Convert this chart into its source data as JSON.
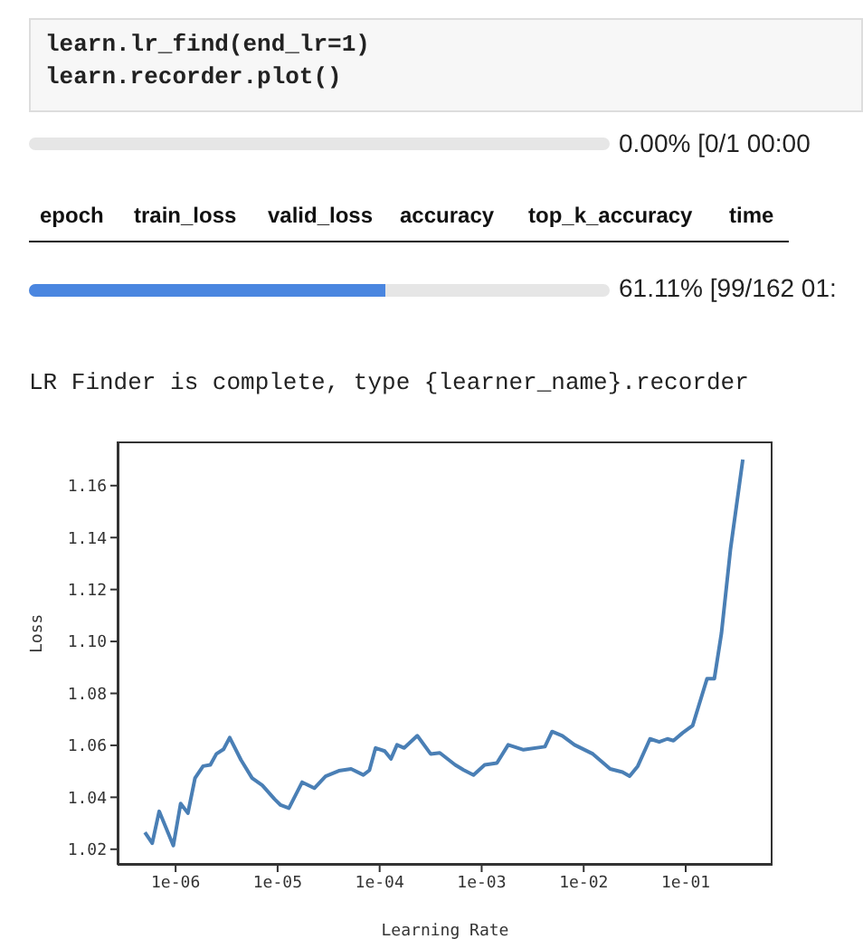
{
  "chart_data": {
    "type": "line",
    "xlabel": "Learning Rate",
    "ylabel": "Loss",
    "x": [
      5e-07,
      5.9e-07,
      6.9e-07,
      9.5e-07,
      1.12e-06,
      1.32e-06,
      1.55e-06,
      1.86e-06,
      2.19e-06,
      2.51e-06,
      2.95e-06,
      3.39e-06,
      4.37e-06,
      5.62e-06,
      7.08e-06,
      9.33e-06,
      1.07e-05,
      1.29e-05,
      1.74e-05,
      2.29e-05,
      2.95e-05,
      3.98e-05,
      5.25e-05,
      6.92e-05,
      7.94e-05,
      9.12e-05,
      0.000112,
      0.000129,
      0.000148,
      0.000174,
      0.000234,
      0.000316,
      0.000389,
      0.00055,
      0.000661,
      0.000832,
      0.00107,
      0.00141,
      0.00182,
      0.00257,
      0.00417,
      0.0049,
      0.00617,
      0.00813,
      0.0123,
      0.0182,
      0.024,
      0.0282,
      0.0339,
      0.0447,
      0.055,
      0.0661,
      0.0759,
      0.0933,
      0.117,
      0.162,
      0.191,
      0.224,
      0.275,
      0.363
    ],
    "series": [
      {
        "color": "#4a7fb5",
        "values": [
          1.0265,
          1.0223,
          1.0346,
          1.0214,
          1.0376,
          1.0339,
          1.0474,
          1.052,
          1.0525,
          1.0567,
          1.0585,
          1.063,
          1.0544,
          1.0474,
          1.0446,
          1.0393,
          1.037,
          1.0358,
          1.0458,
          1.0435,
          1.0481,
          1.0502,
          1.0509,
          1.0486,
          1.0504,
          1.059,
          1.0578,
          1.0548,
          1.0602,
          1.059,
          1.0637,
          1.0567,
          1.0571,
          1.0525,
          1.0506,
          1.0486,
          1.0525,
          1.0532,
          1.0602,
          1.0583,
          1.0595,
          1.0653,
          1.0637,
          1.0602,
          1.0567,
          1.0509,
          1.0497,
          1.0481,
          1.052,
          1.0625,
          1.0613,
          1.0625,
          1.0618,
          1.0648,
          1.0676,
          1.0857,
          1.0857,
          1.1031,
          1.1356,
          1.17
        ]
      }
    ],
    "log": "x",
    "xlim": [
      2.7e-07,
      0.71
    ],
    "xticks": [
      {
        "value": 1e-06,
        "label": "1e-06"
      },
      {
        "value": 1e-05,
        "label": "1e-05"
      },
      {
        "value": 0.0001,
        "label": "1e-04"
      },
      {
        "value": 0.001,
        "label": "1e-03"
      },
      {
        "value": 0.01,
        "label": "1e-02"
      },
      {
        "value": 0.1,
        "label": "1e-01"
      }
    ],
    "ylim": [
      1.014,
      1.177
    ],
    "yticks": [
      1.02,
      1.04,
      1.06,
      1.08,
      {
        "value": 1.1,
        "label": "1.10"
      },
      1.12,
      1.14,
      1.16
    ],
    "grid": false,
    "legend": false,
    "marker": "none",
    "line_style": "solid",
    "annotations": [
      "learn.lr_find(end_lr=1)",
      "learn.recorder.plot()",
      "0.00% [0/1 00:00",
      "epoch",
      "train_loss",
      "valid_loss",
      "accuracy",
      "top_k_accuracy",
      "time",
      "61.11% [99/162 01:",
      "LR Finder is complete, type {learner_name}.recorder"
    ]
  }
}
